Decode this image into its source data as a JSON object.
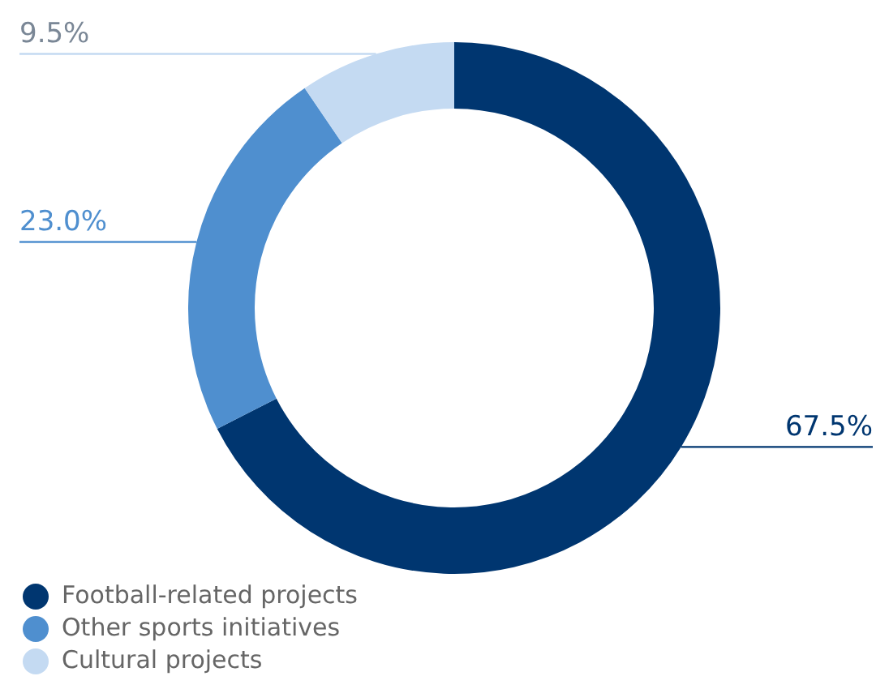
{
  "chart_data": {
    "type": "donut",
    "categories": [
      "Football-related projects",
      "Other sports initiatives",
      "Cultural projects"
    ],
    "values": [
      67.5,
      23.0,
      9.5
    ],
    "colors": [
      "#003670",
      "#4f8fcf",
      "#c4daf2"
    ],
    "value_labels": [
      "67.5%",
      "23.0%",
      "9.5%"
    ],
    "legend": "bottom left"
  }
}
